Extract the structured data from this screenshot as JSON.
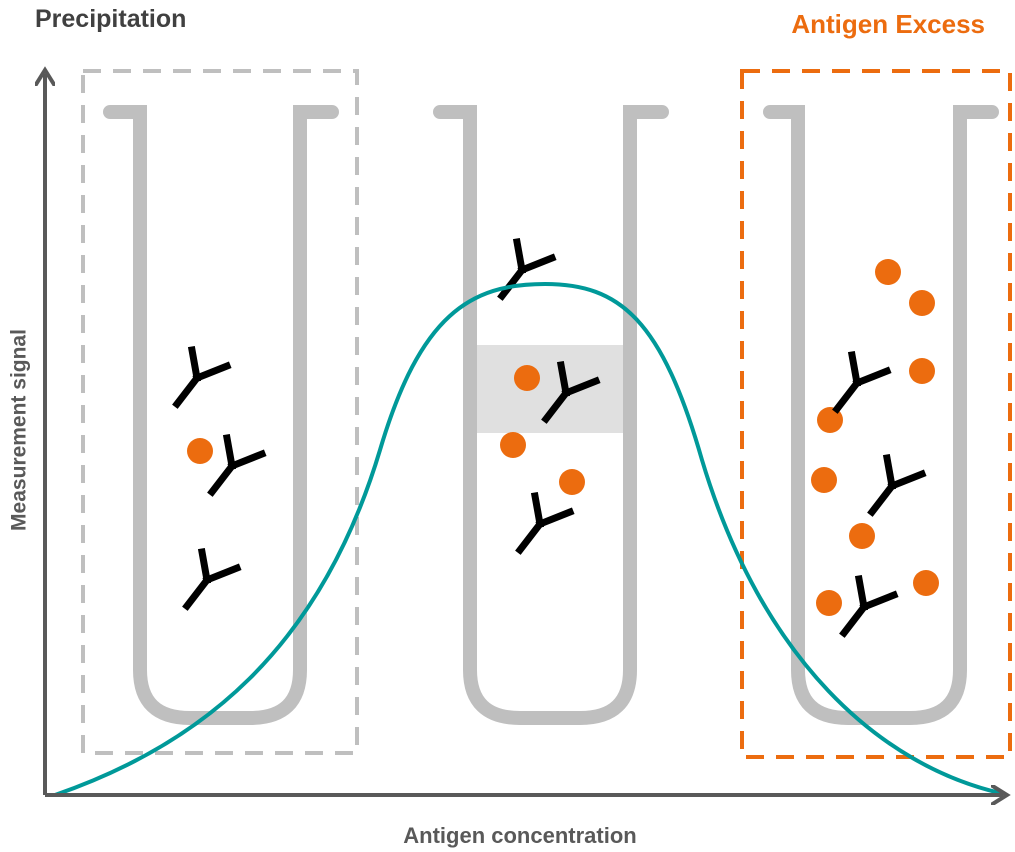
{
  "header": {
    "title": "Precipitation",
    "right_title": "Antigen Excess"
  },
  "axes": {
    "y_label": "Measurement signal",
    "x_label": "Antigen concentration"
  }
}
